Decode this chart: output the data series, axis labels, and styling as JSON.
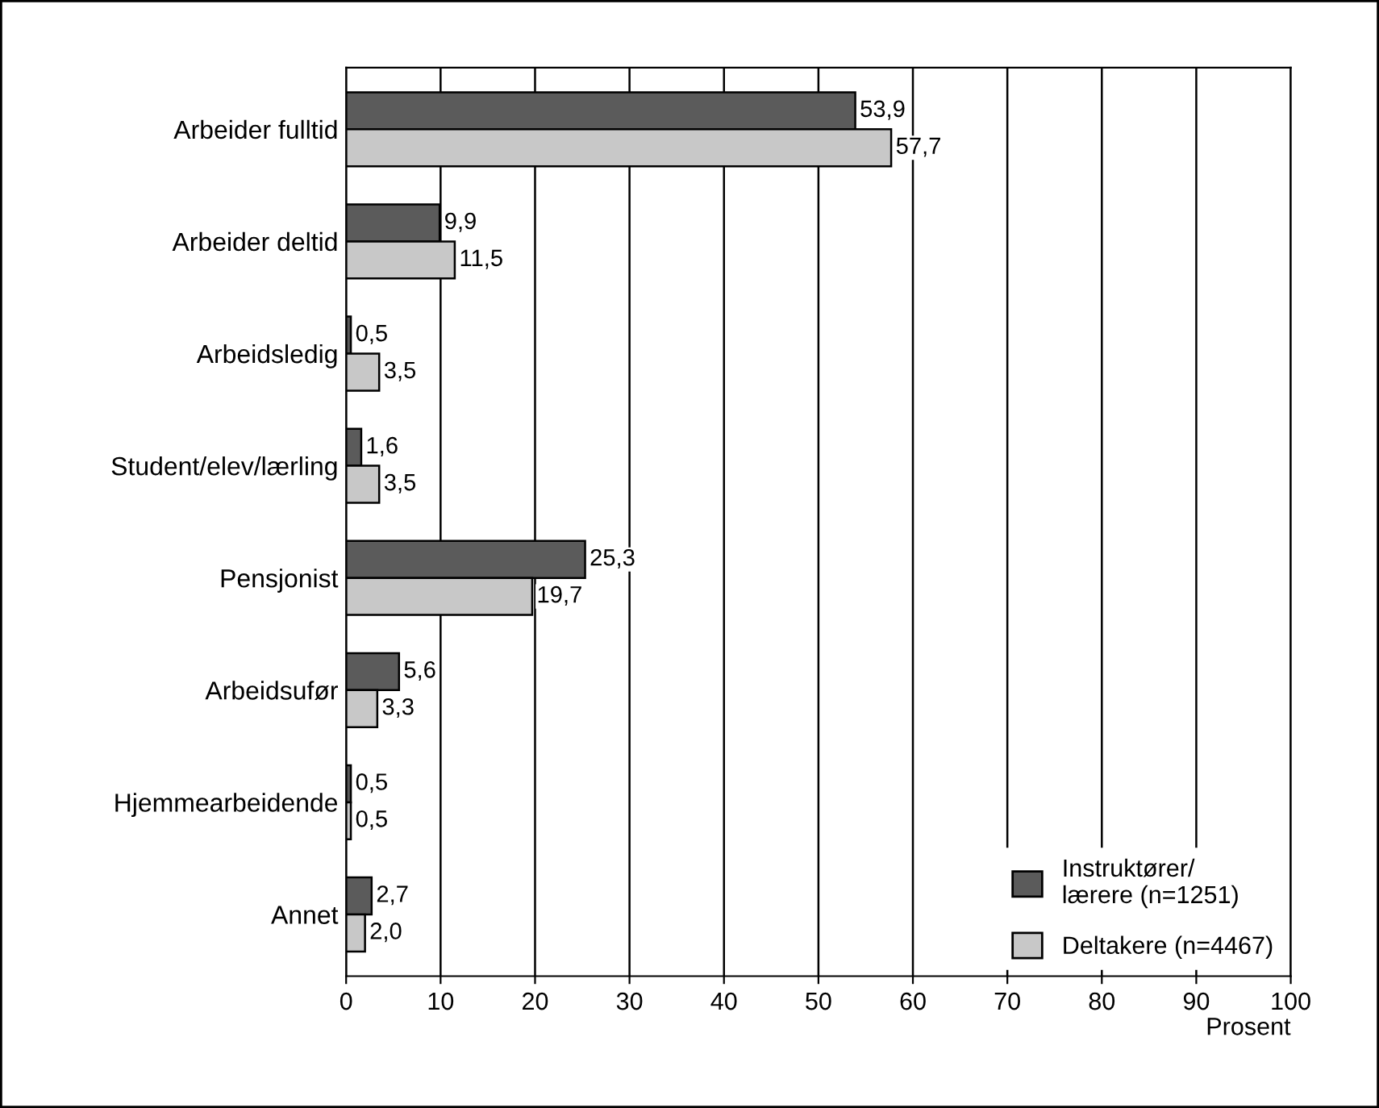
{
  "chart_data": {
    "type": "bar",
    "orientation": "horizontal",
    "xlabel": "Prosent",
    "categories": [
      "Arbeider fulltid",
      "Arbeider deltid",
      "Arbeidsledig",
      "Student/elev/lærling",
      "Pensjonist",
      "Arbeidsufør",
      "Hjemmearbeidende",
      "Annet"
    ],
    "series": [
      {
        "name": "Instruktører/\nlærere (n=1251)",
        "color": "#5b5b5b",
        "values": [
          53.9,
          9.9,
          0.5,
          1.6,
          25.3,
          5.6,
          0.5,
          2.7
        ],
        "value_labels": [
          "53,9",
          "9,9",
          "0,5",
          "1,6",
          "25,3",
          "5,6",
          "0,5",
          "2,7"
        ]
      },
      {
        "name": "Deltakere (n=4467)",
        "color": "#c8c8c8",
        "values": [
          57.7,
          11.5,
          3.5,
          3.5,
          19.7,
          3.3,
          0.5,
          2.0
        ],
        "value_labels": [
          "57,7",
          "11,5",
          "3,5",
          "3,5",
          "19,7",
          "3,3",
          "0,5",
          "2,0"
        ]
      }
    ],
    "xlim": [
      0,
      100
    ],
    "xticks": [
      0,
      10,
      20,
      30,
      40,
      50,
      60,
      70,
      80,
      90,
      100
    ],
    "grid": "x",
    "legend": "bottom right"
  }
}
